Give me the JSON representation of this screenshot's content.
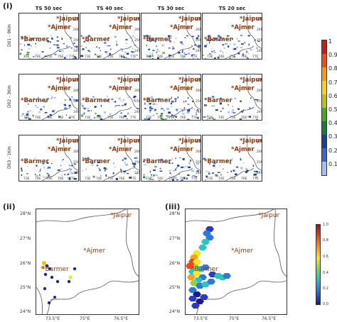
{
  "panel_labels": {
    "i": "(i)",
    "ii": "(ii)",
    "iii": "(iii)"
  },
  "columns": [
    "TS 50 sec",
    "TS 40 sec",
    "TS 30 sec",
    "TS 20 sec"
  ],
  "rows": [
    "D01 - 9Km",
    "D02 - 3Km",
    "D03 - 1Km"
  ],
  "cities": {
    "jaipur": "*Jaipur",
    "ajmer": "*Ajmer",
    "barmer": "*Barmer"
  },
  "small_lats": [
    "27N",
    "26N",
    "25N",
    "24N"
  ],
  "small_lons": [
    "73E",
    "74E",
    "75E",
    "76E",
    "77E"
  ],
  "main_colorbar": {
    "ticks": [
      "1",
      "0.9",
      "0.8",
      "0.7",
      "0.6",
      "0.5",
      "0.4",
      "0.3",
      "0.2",
      "0.1"
    ],
    "colors": [
      "#c0201a",
      "#e3521b",
      "#f29a19",
      "#f6d01a",
      "#b7c11e",
      "#4aa32d",
      "#1b7c3a",
      "#1f3f91",
      "#3e66c4",
      "#a5bff0"
    ]
  },
  "map_ii": {
    "lats": [
      "28°N",
      "27°N",
      "26°N",
      "25°N",
      "24°N"
    ],
    "lons": [
      "73.5°E",
      "75°E",
      "76.5°E"
    ]
  },
  "map_iii": {
    "lats": [
      "28°N",
      "27°N",
      "26°N",
      "25°N",
      "24°N"
    ],
    "lons": [
      "73.5°E",
      "75°E",
      "76.5°E"
    ],
    "colorbar_ticks": [
      "1.0",
      "0.8",
      "0.6",
      "0.4",
      "0.2",
      "0.0"
    ]
  }
}
